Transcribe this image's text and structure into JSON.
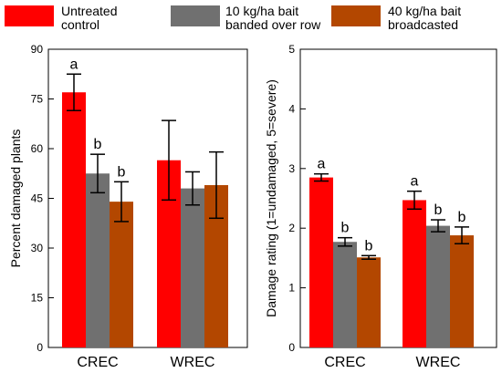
{
  "legend": [
    {
      "lines": [
        "Untreated",
        "control"
      ],
      "color": "#ff0000"
    },
    {
      "lines": [
        "10 kg/ha bait",
        "banded over row"
      ],
      "color": "#707070"
    },
    {
      "lines": [
        "40 kg/ha bait",
        "broadcasted"
      ],
      "color": "#b34700"
    }
  ],
  "chart_data": [
    {
      "type": "bar",
      "categories": [
        "CREC",
        "WREC"
      ],
      "ylabel": "Percent damaged plants",
      "ylim": [
        0,
        90
      ],
      "yticks": [
        0,
        15,
        30,
        45,
        60,
        75,
        90
      ],
      "series": [
        {
          "name": "Untreated control",
          "values": [
            77,
            56.5
          ],
          "error": [
            5.5,
            12
          ],
          "letters": [
            "a",
            ""
          ]
        },
        {
          "name": "10 kg/ha bait banded over row",
          "values": [
            52.5,
            48
          ],
          "error": [
            5.8,
            5
          ],
          "letters": [
            "b",
            ""
          ]
        },
        {
          "name": "40 kg/ha bait broadcasted",
          "values": [
            44,
            49
          ],
          "error": [
            6,
            10
          ],
          "letters": [
            "b",
            ""
          ]
        }
      ]
    },
    {
      "type": "bar",
      "categories": [
        "CREC",
        "WREC"
      ],
      "ylabel": "Damage rating (1=undamaged, 5=severe)",
      "ylim": [
        0,
        5
      ],
      "yticks": [
        0,
        1,
        2,
        3,
        4,
        5
      ],
      "series": [
        {
          "name": "Untreated control",
          "values": [
            2.85,
            2.47
          ],
          "error": [
            0.06,
            0.15
          ],
          "letters": [
            "a",
            "a"
          ]
        },
        {
          "name": "10 kg/ha bait banded over row",
          "values": [
            1.77,
            2.04
          ],
          "error": [
            0.07,
            0.1
          ],
          "letters": [
            "b",
            "b"
          ]
        },
        {
          "name": "40 kg/ha bait broadcasted",
          "values": [
            1.51,
            1.88
          ],
          "error": [
            0.03,
            0.14
          ],
          "letters": [
            "b",
            "b"
          ]
        }
      ]
    }
  ]
}
